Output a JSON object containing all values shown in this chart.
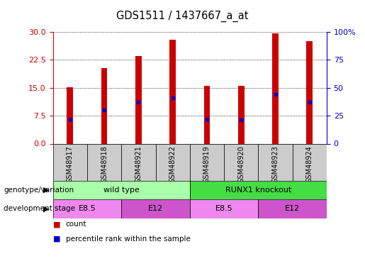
{
  "title": "GDS1511 / 1437667_a_at",
  "samples": [
    "GSM48917",
    "GSM48918",
    "GSM48921",
    "GSM48922",
    "GSM48919",
    "GSM48920",
    "GSM48923",
    "GSM48924"
  ],
  "counts": [
    15.1,
    20.3,
    23.5,
    28.0,
    15.5,
    15.5,
    29.7,
    27.6
  ],
  "percentile_ranks": [
    6.6,
    9.0,
    11.1,
    12.2,
    6.6,
    6.3,
    13.2,
    11.1
  ],
  "ylim_left": [
    0,
    30
  ],
  "yticks_left": [
    0,
    7.5,
    15,
    22.5,
    30
  ],
  "yticks_right_vals": [
    0,
    7.5,
    15,
    22.5,
    30
  ],
  "yticks_right_labels": [
    "0",
    "25",
    "50",
    "75",
    "100%"
  ],
  "bar_color": "#cc0000",
  "dot_color": "#0000cc",
  "bar_width": 0.18,
  "genotype_groups": [
    {
      "label": "wild type",
      "start": 0,
      "end": 3,
      "color": "#aaffaa"
    },
    {
      "label": "RUNX1 knockout",
      "start": 4,
      "end": 7,
      "color": "#44dd44"
    }
  ],
  "dev_stage_groups": [
    {
      "label": "E8.5",
      "start": 0,
      "end": 1,
      "color": "#ee88ee"
    },
    {
      "label": "E12",
      "start": 2,
      "end": 3,
      "color": "#cc55cc"
    },
    {
      "label": "E8.5",
      "start": 4,
      "end": 5,
      "color": "#ee88ee"
    },
    {
      "label": "E12",
      "start": 6,
      "end": 7,
      "color": "#cc55cc"
    }
  ],
  "legend_count_label": "count",
  "legend_pct_label": "percentile rank within the sample",
  "genotype_label": "genotype/variation",
  "devstage_label": "development stage",
  "left_axis_color": "#cc0000",
  "right_axis_color": "#0000cc",
  "bg_color": "#ffffff",
  "sample_label_bg": "#cccccc"
}
